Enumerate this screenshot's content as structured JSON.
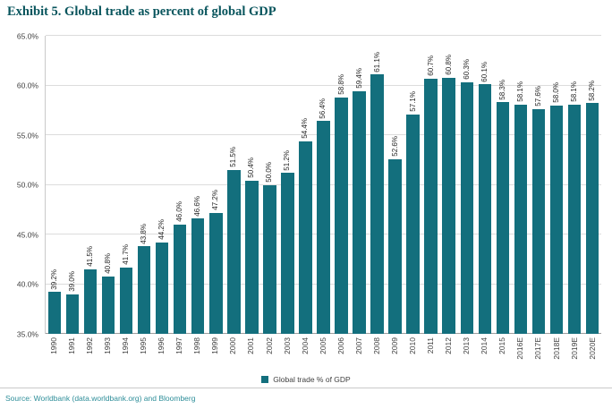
{
  "title": "Exhibit 5. Global trade as percent of global GDP",
  "source": "Source: Worldbank (data.worldbank.org) and Bloomberg",
  "legend": {
    "label": "Global trade % of GDP"
  },
  "colors": {
    "bar": "#136f7d",
    "title": "#07545c",
    "source": "#2e8e99"
  },
  "chart_data": {
    "type": "bar",
    "title": "Exhibit 5. Global trade as percent of global GDP",
    "xlabel": "",
    "ylabel": "",
    "ylim": [
      35,
      65
    ],
    "grid": true,
    "legend_position": "bottom",
    "categories": [
      "1990",
      "1991",
      "1992",
      "1993",
      "1994",
      "1995",
      "1996",
      "1997",
      "1998",
      "1999",
      "2000",
      "2001",
      "2002",
      "2003",
      "2004",
      "2005",
      "2006",
      "2007",
      "2008",
      "2009",
      "2010",
      "2011",
      "2012",
      "2013",
      "2014",
      "2015",
      "2016E",
      "2017E",
      "2018E",
      "2019E",
      "2020E"
    ],
    "values": [
      39.2,
      39.0,
      41.5,
      40.8,
      41.7,
      43.8,
      44.2,
      46.0,
      46.6,
      47.2,
      51.5,
      50.4,
      50.0,
      51.2,
      54.4,
      56.4,
      58.8,
      59.4,
      61.1,
      52.6,
      57.1,
      60.7,
      60.8,
      60.3,
      60.1,
      58.3,
      58.1,
      57.6,
      58.0,
      58.1,
      58.2
    ],
    "value_labels": [
      "39.2%",
      "39.0%",
      "41.5%",
      "40.8%",
      "41.7%",
      "43.8%",
      "44.2%",
      "46.0%",
      "46.6%",
      "47.2%",
      "51.5%",
      "50.4%",
      "50.0%",
      "51.2%",
      "54.4%",
      "56.4%",
      "58.8%",
      "59.4%",
      "61.1%",
      "52.6%",
      "57.1%",
      "60.7%",
      "60.8%",
      "60.3%",
      "60.1%",
      "58.3%",
      "58.1%",
      "57.6%",
      "58.0%",
      "58.1%",
      "58.2%"
    ],
    "ytick_values": [
      35,
      40,
      45,
      50,
      55,
      60,
      65
    ],
    "ytick_labels": [
      "35.0%",
      "40.0%",
      "45.0%",
      "50.0%",
      "55.0%",
      "60.0%",
      "65.0%"
    ],
    "series_name": "Global trade % of GDP"
  }
}
